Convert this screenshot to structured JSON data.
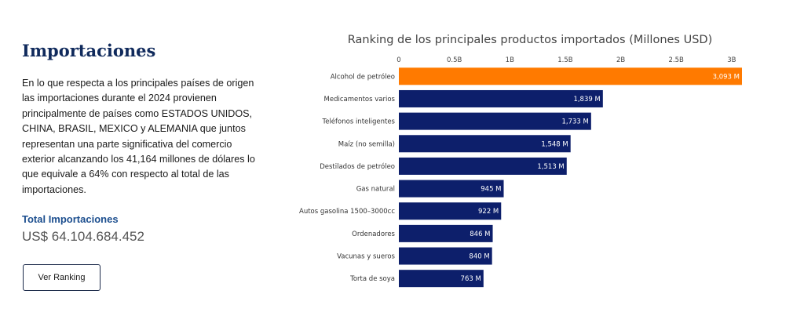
{
  "summary": {
    "title": "Importaciones",
    "description": "En lo que respecta a los principales países de origen las importaciones durante el 2024 provienen principalmente de países como ESTADOS UNIDOS, CHINA, BRASIL, MEXICO y ALEMANIA que juntos representan una parte significativa del comercio exterior alcanzando los 41,164 millones de dólares lo que equivale a 64% con respecto al total de las importaciones.",
    "total_label": "Total Importaciones",
    "total_value": "US$ 64.104.684.452",
    "button_label": "Ver Ranking"
  },
  "chart_data": {
    "type": "bar",
    "orientation": "horizontal",
    "title": "Ranking de los principales productos importados (Millones USD)",
    "categories": [
      "Alcohol de petróleo",
      "Medicamentos varios",
      "Teléfonos inteligentes",
      "Maíz (no semilla)",
      "Destilados de petróleo",
      "Gas natural",
      "Autos gasolina 1500–3000cc",
      "Ordenadores",
      "Vacunas y sueros",
      "Torta de soya"
    ],
    "values": [
      3093,
      1839,
      1733,
      1548,
      1513,
      945,
      922,
      846,
      840,
      763
    ],
    "data_labels": [
      "3,093 M",
      "1,839 M",
      "1,733 M",
      "1,548 M",
      "1,513 M",
      "945 M",
      "922 M",
      "846 M",
      "840 M",
      "763 M"
    ],
    "xlim": [
      0,
      3093
    ],
    "ticks": [
      0,
      500,
      1000,
      1500,
      2000,
      2500,
      3000
    ],
    "tick_labels": [
      "0",
      "0.5B",
      "1B",
      "1.5B",
      "2B",
      "2.5B",
      "3B"
    ],
    "axis_position": "top",
    "grid": false,
    "colors": {
      "highlight": "#ff7a00",
      "default": "#0d1f6b",
      "label": "#ffffff"
    },
    "highlight_index": 0
  }
}
